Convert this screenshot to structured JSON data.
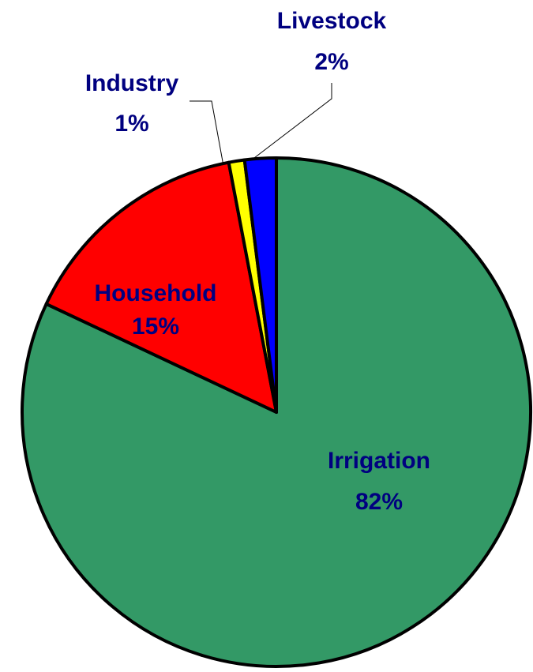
{
  "chart_data": {
    "type": "pie",
    "categories": [
      "Irrigation",
      "Household",
      "Industry",
      "Livestock"
    ],
    "values": [
      82,
      15,
      1,
      2
    ],
    "value_labels": [
      "82%",
      "15%",
      "1%",
      "2%"
    ],
    "colors": [
      "#339966",
      "#ff0000",
      "#ffff00",
      "#0000ff"
    ]
  }
}
